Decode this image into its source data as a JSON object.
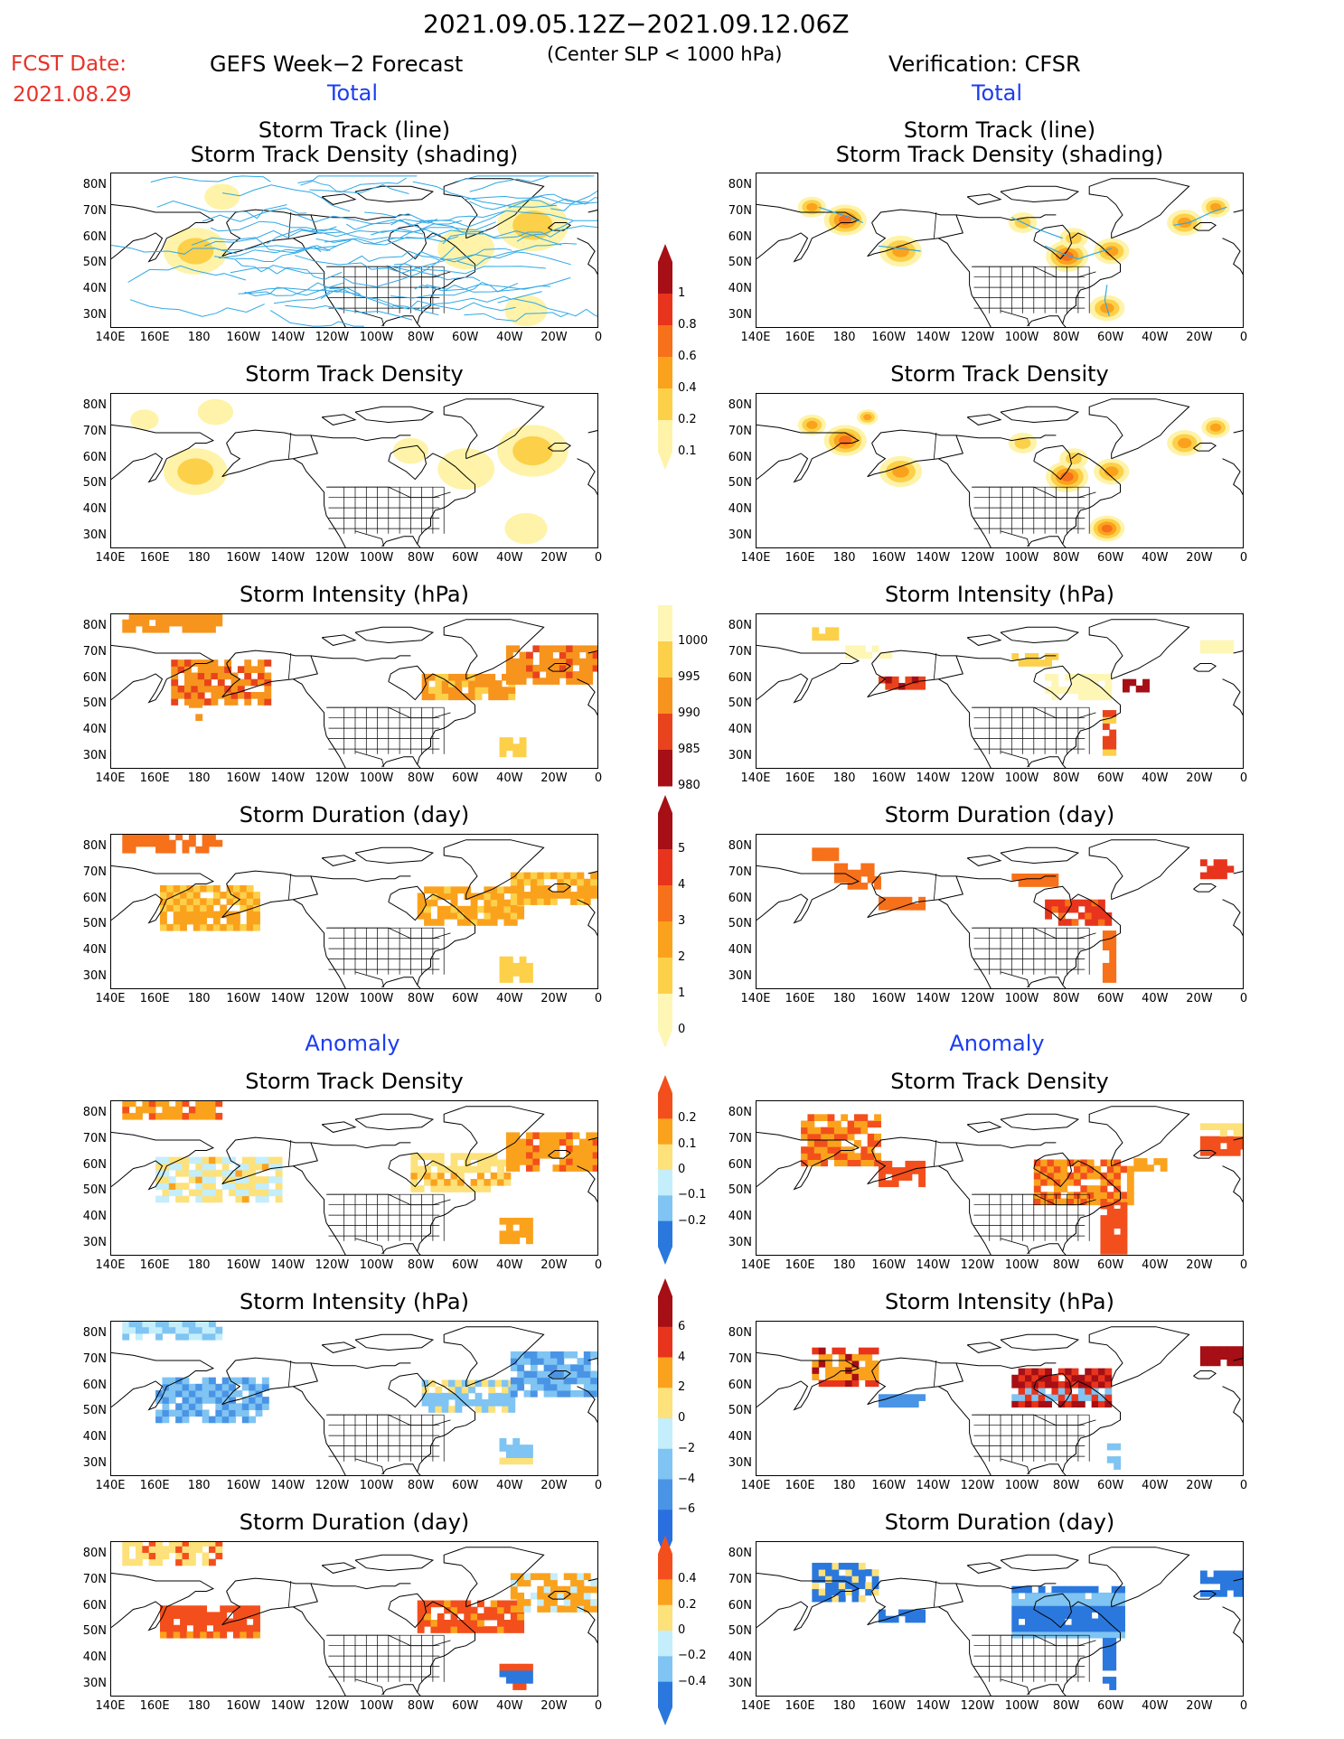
{
  "header": {
    "date_range": "2021.09.05.12Z−2021.09.12.06Z",
    "threshold": "(Center SLP < 1000 hPa)",
    "fcst_label": "FCST Date:",
    "fcst_date": "2021.08.29",
    "left_model": "GEFS Week−2 Forecast",
    "right_model": "Verification: CFSR"
  },
  "sections": {
    "total": "Total",
    "anomaly": "Anomaly"
  },
  "panel_titles": {
    "track_line": "Storm Track (line)",
    "track_shading": "Storm Track Density (shading)",
    "density": "Storm Track Density",
    "intensity": "Storm Intensity (hPa)",
    "duration": "Storm Duration (day)"
  },
  "axes": {
    "lat_labels": [
      "80N",
      "70N",
      "60N",
      "50N",
      "40N",
      "30N"
    ],
    "lon_labels": [
      "140E",
      "160E",
      "180",
      "160W",
      "140W",
      "120W",
      "100W",
      "80W",
      "60W",
      "40W",
      "20W",
      "0"
    ]
  },
  "colorbars": {
    "track_density": {
      "labels": [
        "1",
        "0.8",
        "0.6",
        "0.4",
        "0.2",
        "0.1"
      ],
      "colors": [
        "#a50f15",
        "#e8341c",
        "#f7701a",
        "#fba21d",
        "#fdd04a",
        "#fef3a8"
      ]
    },
    "intensity": {
      "labels": [
        "1000",
        "995",
        "990",
        "985",
        "980"
      ],
      "colors": [
        "#fef6b5",
        "#fdd04a",
        "#f7941d",
        "#e8431c",
        "#a50f15"
      ]
    },
    "duration": {
      "labels": [
        "5",
        "4",
        "3",
        "2",
        "1",
        "0"
      ],
      "colors": [
        "#a50f15",
        "#e8341c",
        "#f7701a",
        "#fba21d",
        "#fdd04a",
        "#fef6b5"
      ]
    },
    "anom_density": {
      "labels": [
        "0.2",
        "0.1",
        "0",
        "−0.1",
        "−0.2"
      ],
      "colors": [
        "#f34f1c",
        "#fba21d",
        "#fde17a",
        "#c4eefb",
        "#7fc4f2",
        "#2a78dd"
      ]
    },
    "anom_intensity": {
      "labels": [
        "6",
        "4",
        "2",
        "0",
        "−2",
        "−4",
        "−6"
      ],
      "colors": [
        "#a50f15",
        "#e8341c",
        "#fba21d",
        "#fde17a",
        "#c4eefb",
        "#7fc4f2",
        "#4a94e6",
        "#2a6fe0"
      ]
    },
    "anom_duration": {
      "labels": [
        "0.4",
        "0.2",
        "0",
        "−0.2",
        "−0.4"
      ],
      "colors": [
        "#f34f1c",
        "#fba21d",
        "#fde17a",
        "#c4eefb",
        "#7fc4f2",
        "#2a78dd"
      ]
    }
  }
}
